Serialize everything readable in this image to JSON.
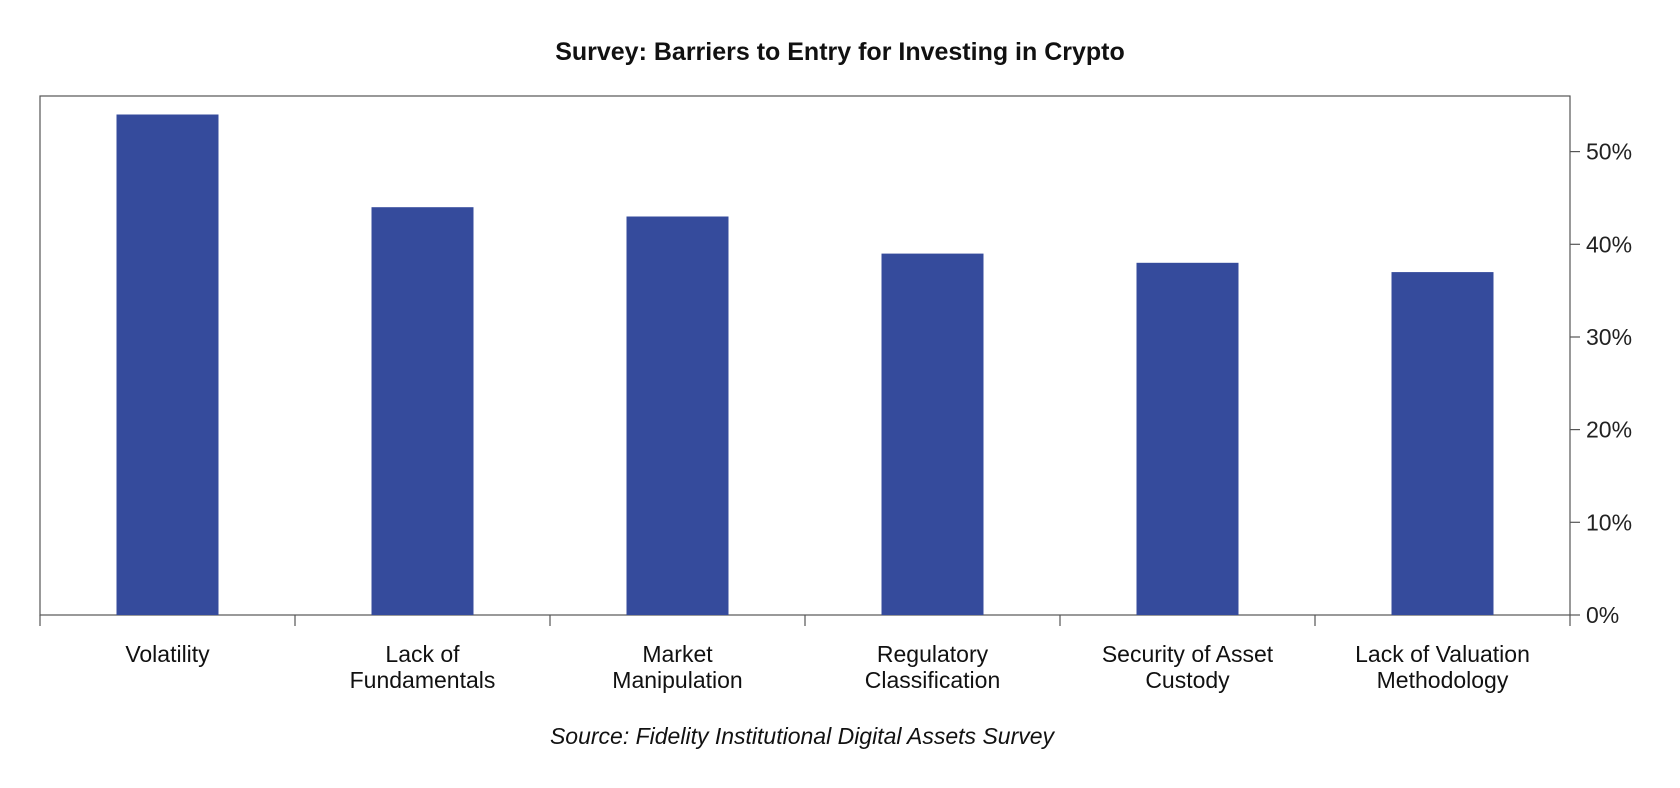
{
  "chart_data": {
    "type": "bar",
    "title": "Survey: Barriers to Entry for Investing in Crypto",
    "source": "Source: Fidelity Institutional Digital Assets Survey",
    "categories": [
      [
        "Volatility"
      ],
      [
        "Lack of",
        "Fundamentals"
      ],
      [
        "Market",
        "Manipulation"
      ],
      [
        "Regulatory",
        "Classification"
      ],
      [
        "Security of Asset",
        "Custody"
      ],
      [
        "Lack of Valuation",
        "Methodology"
      ]
    ],
    "values": [
      54,
      44,
      43,
      39,
      38,
      37
    ],
    "value_unit": "%",
    "ylim": [
      0,
      56
    ],
    "yticks": [
      0,
      10,
      20,
      30,
      40,
      50
    ],
    "ytick_labels": [
      "0%",
      "10%",
      "20%",
      "30%",
      "40%",
      "50%"
    ],
    "y_axis_side": "right",
    "grid": false,
    "legend": "none",
    "bar_color": "#354b9c"
  }
}
